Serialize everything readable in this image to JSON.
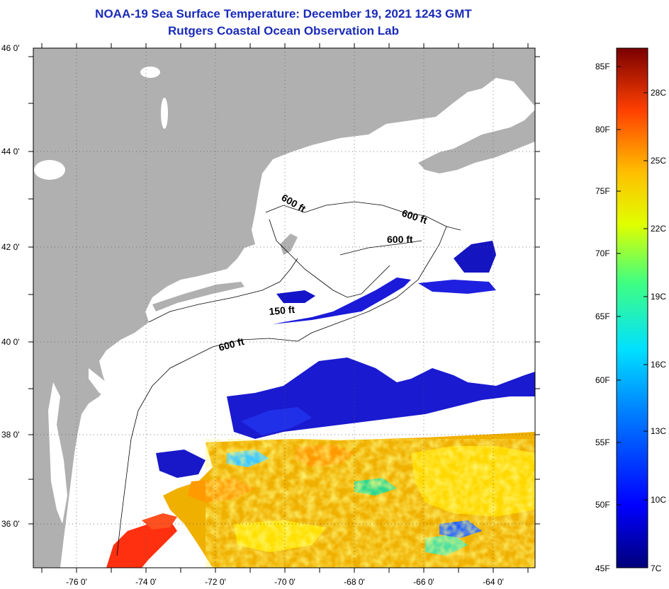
{
  "title_line1": "NOAA-19 Sea Surface Temperature:  December 19, 2021 1243 GMT",
  "title_line2": "Rutgers Coastal Ocean Observation Lab",
  "lat_labels": [
    "46 0'",
    "44 0'",
    "42 0'",
    "40 0'",
    "38 0'",
    "36 0'"
  ],
  "lon_labels": [
    "-76 0'",
    "-74 0'",
    "-72 0'",
    "-70 0'",
    "-68 0'",
    "-66 0'",
    "-64 0'"
  ],
  "contours": {
    "a": "600 ft",
    "b": "600 ft",
    "c": "600 ft",
    "d": "150 ft",
    "e": "600 ft"
  },
  "colorbar": {
    "fahrenheit": [
      "85F",
      "80F",
      "75F",
      "70F",
      "65F",
      "60F",
      "55F",
      "50F",
      "45F"
    ],
    "celsius": [
      "28C",
      "25C",
      "22C",
      "19C",
      "16C",
      "13C",
      "10C",
      "7C"
    ]
  },
  "colors": {
    "title": "#1a2bb8",
    "land": "#b0b0b0",
    "ocean_nodata": "#ffffff"
  }
}
